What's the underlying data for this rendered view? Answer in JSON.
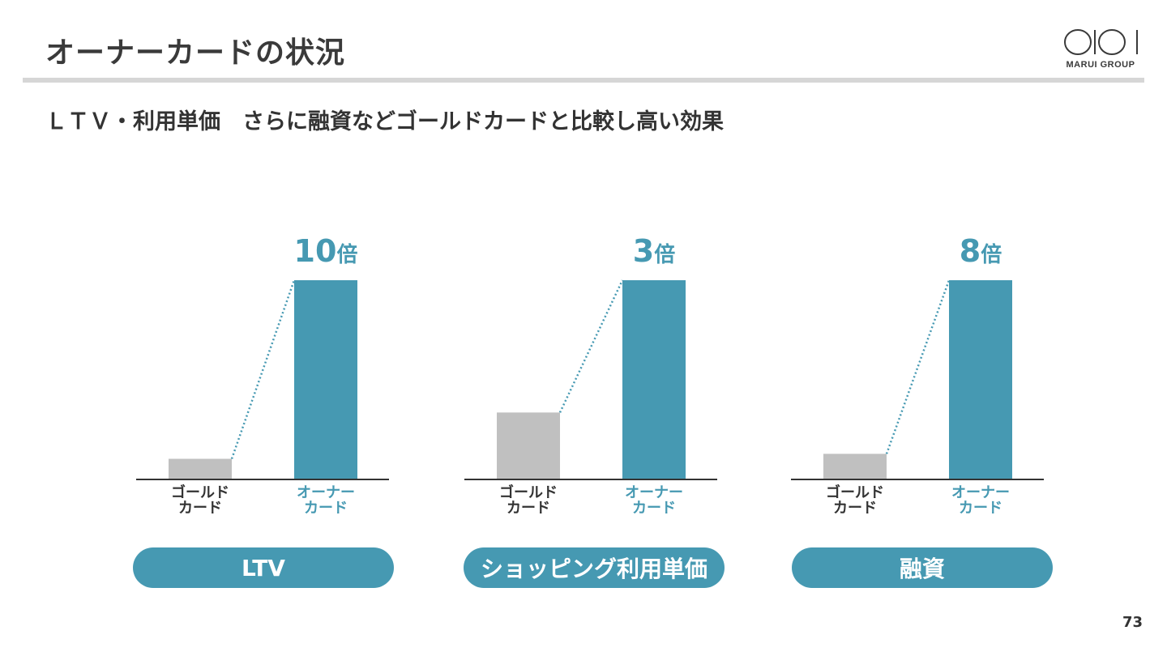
{
  "header": {
    "title": "オーナーカードの状況",
    "logo_text": "MARUI GROUP"
  },
  "subtitle": "ＬＴＶ・利用単価　さらに融資などゴールドカードと比較し高い効果",
  "colors": {
    "accent": "#4699b2",
    "gold_bar": "#c0c0c0",
    "rule": "#d6d6d6",
    "text": "#333333"
  },
  "charts": [
    {
      "label": "LTV",
      "multiplier_num": "10",
      "multiplier_unit": "倍",
      "categories": [
        "ゴールド\nカード",
        "オーナー\nカード"
      ]
    },
    {
      "label": "ショッピング利用単価",
      "multiplier_num": "3",
      "multiplier_unit": "倍",
      "categories": [
        "ゴールド\nカード",
        "オーナー\nカード"
      ]
    },
    {
      "label": "融資",
      "multiplier_num": "8",
      "multiplier_unit": "倍",
      "categories": [
        "ゴールド\nカード",
        "オーナー\nカード"
      ]
    }
  ],
  "chart_data": [
    {
      "type": "bar",
      "title": "",
      "categories": [
        "ゴールドカード",
        "オーナーカード"
      ],
      "values": [
        1,
        10
      ],
      "annotation": "10倍",
      "category_group": "LTV"
    },
    {
      "type": "bar",
      "title": "",
      "categories": [
        "ゴールドカード",
        "オーナーカード"
      ],
      "values": [
        1,
        3
      ],
      "annotation": "3倍",
      "category_group": "ショッピング利用単価"
    },
    {
      "type": "bar",
      "title": "",
      "categories": [
        "ゴールドカード",
        "オーナーカード"
      ],
      "values": [
        1,
        8
      ],
      "annotation": "8倍",
      "category_group": "融資"
    }
  ],
  "page_number": "73"
}
